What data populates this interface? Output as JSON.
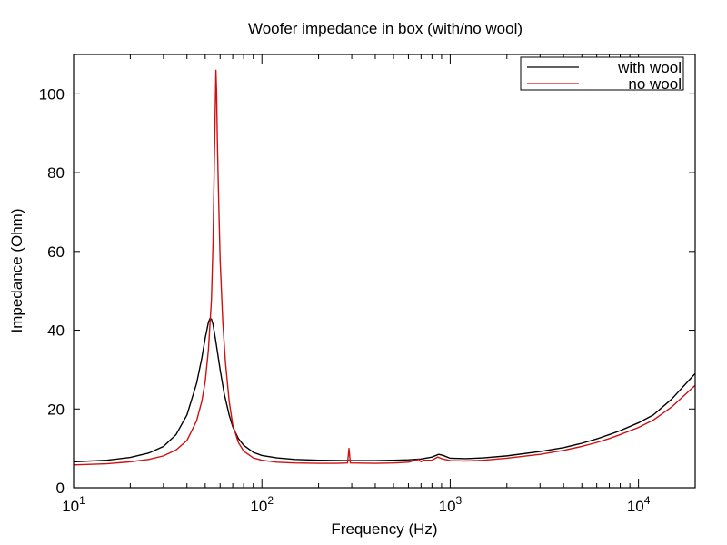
{
  "chart_data": {
    "type": "line",
    "title": "Woofer impedance in box (with/no wool)",
    "xlabel": "Frequency (Hz)",
    "ylabel": "Impedance (Ohm)",
    "xscale": "log",
    "xlim": [
      10,
      20000
    ],
    "ylim": [
      0,
      110
    ],
    "grid": false,
    "legend_position": "top-right",
    "xticks": [
      {
        "value": 10,
        "base": "10",
        "exp": "1"
      },
      {
        "value": 100,
        "base": "10",
        "exp": "2"
      },
      {
        "value": 1000,
        "base": "10",
        "exp": "3"
      },
      {
        "value": 10000,
        "base": "10",
        "exp": "4"
      }
    ],
    "yticks": [
      0,
      20,
      40,
      60,
      80,
      100
    ],
    "series": [
      {
        "name": "with wool",
        "color": "#000000",
        "points": [
          [
            10,
            6.6
          ],
          [
            15,
            7.0
          ],
          [
            20,
            7.7
          ],
          [
            25,
            8.8
          ],
          [
            30,
            10.5
          ],
          [
            35,
            13.5
          ],
          [
            40,
            18.5
          ],
          [
            45,
            26.5
          ],
          [
            48,
            33
          ],
          [
            50,
            38
          ],
          [
            52,
            42
          ],
          [
            53,
            43
          ],
          [
            54,
            42.8
          ],
          [
            55,
            41.5
          ],
          [
            57,
            37
          ],
          [
            60,
            30
          ],
          [
            63,
            24
          ],
          [
            67,
            18.5
          ],
          [
            70,
            15.5
          ],
          [
            75,
            12.5
          ],
          [
            80,
            10.8
          ],
          [
            90,
            9.0
          ],
          [
            100,
            8.2
          ],
          [
            120,
            7.6
          ],
          [
            150,
            7.2
          ],
          [
            200,
            7.0
          ],
          [
            300,
            6.9
          ],
          [
            400,
            6.9
          ],
          [
            500,
            7.0
          ],
          [
            600,
            7.1
          ],
          [
            700,
            7.3
          ],
          [
            800,
            7.8
          ],
          [
            870,
            8.5
          ],
          [
            920,
            8.2
          ],
          [
            1000,
            7.5
          ],
          [
            1200,
            7.4
          ],
          [
            1500,
            7.6
          ],
          [
            2000,
            8.1
          ],
          [
            3000,
            9.2
          ],
          [
            4000,
            10.2
          ],
          [
            5000,
            11.3
          ],
          [
            6000,
            12.4
          ],
          [
            7000,
            13.5
          ],
          [
            8000,
            14.5
          ],
          [
            10000,
            16.5
          ],
          [
            12000,
            18.5
          ],
          [
            15000,
            22.5
          ],
          [
            20000,
            29
          ]
        ]
      },
      {
        "name": "no wool",
        "color": "#d01010",
        "points": [
          [
            10,
            5.8
          ],
          [
            15,
            6.1
          ],
          [
            20,
            6.6
          ],
          [
            25,
            7.2
          ],
          [
            30,
            8.1
          ],
          [
            35,
            9.6
          ],
          [
            40,
            12
          ],
          [
            45,
            17
          ],
          [
            48,
            22
          ],
          [
            50,
            27
          ],
          [
            52,
            35
          ],
          [
            54,
            48
          ],
          [
            55,
            62
          ],
          [
            56,
            85
          ],
          [
            57,
            106
          ],
          [
            57.5,
            100
          ],
          [
            58,
            88
          ],
          [
            59,
            72
          ],
          [
            60,
            58
          ],
          [
            62,
            42
          ],
          [
            64,
            32
          ],
          [
            67,
            22
          ],
          [
            70,
            16
          ],
          [
            75,
            11.5
          ],
          [
            80,
            9.3
          ],
          [
            90,
            7.6
          ],
          [
            100,
            7.0
          ],
          [
            120,
            6.5
          ],
          [
            150,
            6.3
          ],
          [
            200,
            6.2
          ],
          [
            250,
            6.2
          ],
          [
            285,
            6.3
          ],
          [
            290,
            10.0
          ],
          [
            295,
            6.3
          ],
          [
            400,
            6.2
          ],
          [
            500,
            6.3
          ],
          [
            600,
            6.5
          ],
          [
            680,
            7.2
          ],
          [
            700,
            6.6
          ],
          [
            720,
            7.0
          ],
          [
            800,
            7.0
          ],
          [
            860,
            7.8
          ],
          [
            900,
            7.4
          ],
          [
            1000,
            6.9
          ],
          [
            1200,
            6.8
          ],
          [
            1500,
            7.0
          ],
          [
            2000,
            7.5
          ],
          [
            3000,
            8.5
          ],
          [
            4000,
            9.5
          ],
          [
            5000,
            10.5
          ],
          [
            6000,
            11.5
          ],
          [
            7000,
            12.5
          ],
          [
            8000,
            13.5
          ],
          [
            10000,
            15.3
          ],
          [
            12000,
            17.2
          ],
          [
            15000,
            20.5
          ],
          [
            20000,
            26
          ]
        ]
      }
    ]
  }
}
